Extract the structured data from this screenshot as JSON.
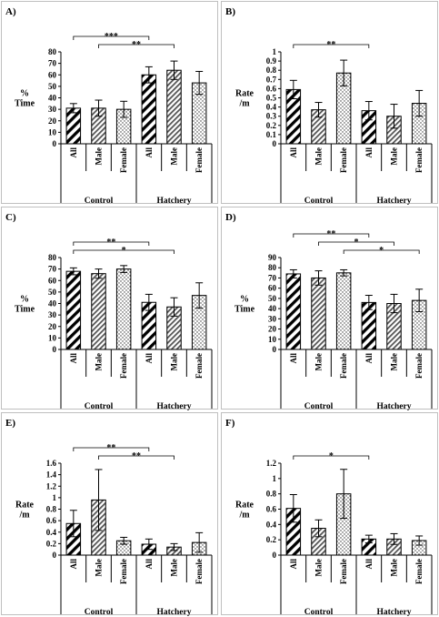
{
  "groups": [
    "Control",
    "Hatchery"
  ],
  "categories": [
    "All",
    "Male",
    "Female",
    "All",
    "Male",
    "Female"
  ],
  "chart_data": [
    {
      "panel": "A)",
      "type": "bar",
      "ylabel_lines": [
        "%",
        "Time"
      ],
      "ylim": [
        0,
        80
      ],
      "yticks": [
        0,
        10,
        20,
        30,
        40,
        50,
        60,
        70,
        80
      ],
      "values": [
        31,
        31,
        30,
        60,
        64,
        53
      ],
      "errors": [
        4,
        7,
        7,
        7,
        8,
        10
      ],
      "significance": [
        {
          "from": 0,
          "to": 3,
          "label": "***"
        },
        {
          "from": 1,
          "to": 4,
          "label": "**"
        }
      ]
    },
    {
      "panel": "B)",
      "type": "bar",
      "ylabel_lines": [
        "Rate",
        "/m"
      ],
      "ylim": [
        0,
        1
      ],
      "yticks": [
        "0",
        "0.1",
        "0.2",
        "0.3",
        "0.4",
        "0.5",
        "0.6",
        "0.7",
        "0.8",
        "0.9",
        "1"
      ],
      "values": [
        0.59,
        0.37,
        0.77,
        0.36,
        0.3,
        0.44
      ],
      "errors": [
        0.1,
        0.08,
        0.14,
        0.1,
        0.13,
        0.14
      ],
      "significance": [
        {
          "from": 0,
          "to": 3,
          "label": "**"
        }
      ]
    },
    {
      "panel": "C)",
      "type": "bar",
      "ylabel_lines": [
        "%",
        "Time"
      ],
      "ylim": [
        0,
        80
      ],
      "yticks": [
        0,
        10,
        20,
        30,
        40,
        50,
        60,
        70,
        80
      ],
      "values": [
        68,
        66,
        70,
        41,
        37,
        47
      ],
      "errors": [
        3,
        4,
        3,
        7,
        8,
        11
      ],
      "significance": [
        {
          "from": 0,
          "to": 3,
          "label": "**"
        },
        {
          "from": 0,
          "to": 4,
          "label": "*"
        }
      ]
    },
    {
      "panel": "D)",
      "type": "bar",
      "ylabel_lines": [
        "%",
        "Time"
      ],
      "ylim": [
        0,
        90
      ],
      "yticks": [
        0,
        10,
        20,
        30,
        40,
        50,
        60,
        70,
        80,
        90
      ],
      "values": [
        74,
        70,
        75,
        46,
        45,
        48
      ],
      "errors": [
        4,
        7,
        3,
        7,
        9,
        11
      ],
      "significance": [
        {
          "from": 0,
          "to": 3,
          "label": "**"
        },
        {
          "from": 1,
          "to": 4,
          "label": "*"
        },
        {
          "from": 2,
          "to": 5,
          "label": "*"
        }
      ]
    },
    {
      "panel": "E)",
      "type": "bar",
      "ylabel_lines": [
        "Rate",
        "/m"
      ],
      "ylim": [
        0,
        1.6
      ],
      "yticks": [
        "0",
        "0.2",
        "0.4",
        "0.6",
        "0.8",
        "1",
        "1.2",
        "1.4",
        "1.6"
      ],
      "values": [
        0.55,
        0.96,
        0.25,
        0.19,
        0.14,
        0.22
      ],
      "errors": [
        0.23,
        0.53,
        0.06,
        0.09,
        0.06,
        0.17
      ],
      "significance": [
        {
          "from": 0,
          "to": 3,
          "label": "**"
        },
        {
          "from": 1,
          "to": 4,
          "label": "**"
        }
      ]
    },
    {
      "panel": "F)",
      "type": "bar",
      "ylabel_lines": [
        "Rate",
        "/m"
      ],
      "ylim": [
        0,
        1.2
      ],
      "yticks": [
        "0",
        "0.2",
        "0.4",
        "0.6",
        "0.8",
        "1",
        "1.2"
      ],
      "values": [
        0.61,
        0.35,
        0.8,
        0.21,
        0.21,
        0.19
      ],
      "errors": [
        0.18,
        0.11,
        0.32,
        0.05,
        0.07,
        0.06
      ],
      "significance": [
        {
          "from": 0,
          "to": 3,
          "label": "*"
        }
      ]
    }
  ]
}
